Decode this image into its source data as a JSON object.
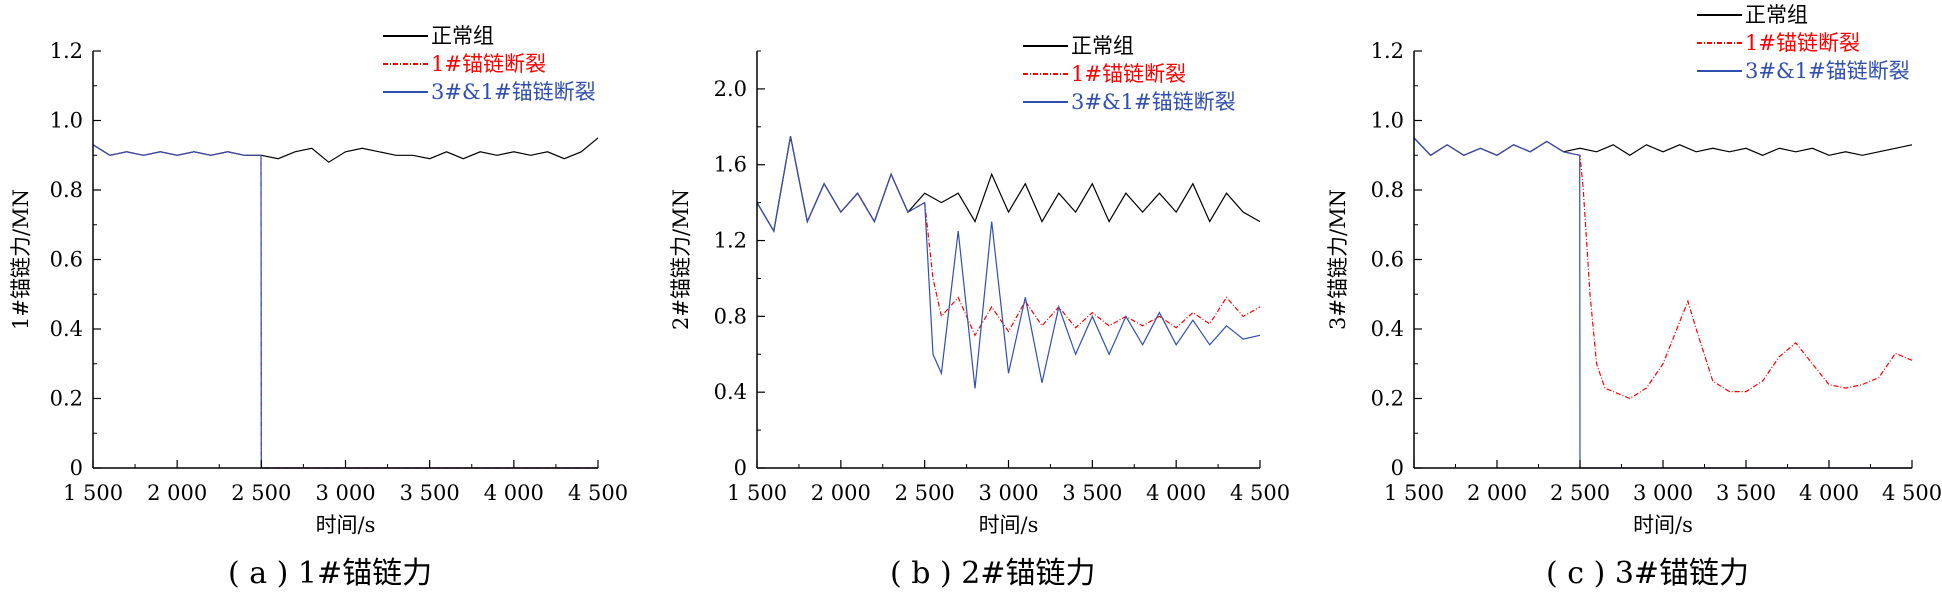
{
  "chart_data": [
    {
      "type": "line",
      "caption": "( a ) 1#锚链力",
      "xlabel": "时间/s",
      "ylabel": "1#锚链力/MN",
      "xlim": [
        1500,
        4500
      ],
      "ylim": [
        0,
        1.2
      ],
      "x_ticks": [
        "1 500",
        "2 000",
        "2 500",
        "3 000",
        "3 500",
        "4 000",
        "4 500"
      ],
      "y_ticks": [
        "0",
        "0.2",
        "0.4",
        "0.6",
        "0.8",
        "1.0",
        "1.2"
      ],
      "legend_position": "top-right",
      "series": [
        {
          "name": "正常组",
          "color": "#000000",
          "style": "solid",
          "points": [
            [
              1500,
              0.93
            ],
            [
              1600,
              0.9
            ],
            [
              1700,
              0.91
            ],
            [
              1800,
              0.9
            ],
            [
              1900,
              0.91
            ],
            [
              2000,
              0.9
            ],
            [
              2100,
              0.91
            ],
            [
              2200,
              0.9
            ],
            [
              2300,
              0.91
            ],
            [
              2400,
              0.9
            ],
            [
              2500,
              0.9
            ],
            [
              2600,
              0.89
            ],
            [
              2700,
              0.91
            ],
            [
              2800,
              0.92
            ],
            [
              2900,
              0.88
            ],
            [
              3000,
              0.91
            ],
            [
              3100,
              0.92
            ],
            [
              3200,
              0.91
            ],
            [
              3300,
              0.9
            ],
            [
              3400,
              0.9
            ],
            [
              3500,
              0.89
            ],
            [
              3600,
              0.91
            ],
            [
              3700,
              0.89
            ],
            [
              3800,
              0.91
            ],
            [
              3900,
              0.9
            ],
            [
              4000,
              0.91
            ],
            [
              4100,
              0.9
            ],
            [
              4200,
              0.91
            ],
            [
              4300,
              0.89
            ],
            [
              4400,
              0.91
            ],
            [
              4500,
              0.95
            ]
          ]
        },
        {
          "name": "1#锚链断裂",
          "color": "#ff0000",
          "style": "dash-dot",
          "points": [
            [
              1500,
              0.93
            ],
            [
              1600,
              0.9
            ],
            [
              1700,
              0.91
            ],
            [
              1800,
              0.9
            ],
            [
              1900,
              0.91
            ],
            [
              2000,
              0.9
            ],
            [
              2100,
              0.91
            ],
            [
              2200,
              0.9
            ],
            [
              2300,
              0.91
            ],
            [
              2400,
              0.9
            ],
            [
              2498,
              0.9
            ],
            [
              2500,
              0.0
            ],
            [
              4500,
              0.0
            ]
          ]
        },
        {
          "name": "3#&1#锚链断裂",
          "color": "#3050b0",
          "style": "solid",
          "points": [
            [
              1500,
              0.93
            ],
            [
              1600,
              0.9
            ],
            [
              1700,
              0.91
            ],
            [
              1800,
              0.9
            ],
            [
              1900,
              0.91
            ],
            [
              2000,
              0.9
            ],
            [
              2100,
              0.91
            ],
            [
              2200,
              0.9
            ],
            [
              2300,
              0.91
            ],
            [
              2400,
              0.9
            ],
            [
              2498,
              0.9
            ],
            [
              2500,
              0.0
            ],
            [
              4500,
              0.0
            ]
          ]
        }
      ]
    },
    {
      "type": "line",
      "caption": "( b ) 2#锚链力",
      "xlabel": "时间/s",
      "ylabel": "2#锚链力/MN",
      "xlim": [
        1500,
        4500
      ],
      "ylim": [
        0,
        2.2
      ],
      "x_ticks": [
        "1 500",
        "2 000",
        "2 500",
        "3 000",
        "3 500",
        "4 000",
        "4 500"
      ],
      "y_ticks": [
        "0",
        "0.4",
        "0.8",
        "1.2",
        "1.6",
        "2.0"
      ],
      "legend_position": "top-right",
      "series": [
        {
          "name": "正常组",
          "color": "#000000",
          "style": "solid",
          "points": [
            [
              1500,
              1.4
            ],
            [
              1600,
              1.25
            ],
            [
              1700,
              1.75
            ],
            [
              1800,
              1.3
            ],
            [
              1900,
              1.5
            ],
            [
              2000,
              1.35
            ],
            [
              2100,
              1.45
            ],
            [
              2200,
              1.3
            ],
            [
              2300,
              1.55
            ],
            [
              2400,
              1.35
            ],
            [
              2500,
              1.45
            ],
            [
              2600,
              1.4
            ],
            [
              2700,
              1.45
            ],
            [
              2800,
              1.3
            ],
            [
              2900,
              1.55
            ],
            [
              3000,
              1.35
            ],
            [
              3100,
              1.5
            ],
            [
              3200,
              1.3
            ],
            [
              3300,
              1.45
            ],
            [
              3400,
              1.35
            ],
            [
              3500,
              1.5
            ],
            [
              3600,
              1.3
            ],
            [
              3700,
              1.45
            ],
            [
              3800,
              1.35
            ],
            [
              3900,
              1.45
            ],
            [
              4000,
              1.35
            ],
            [
              4100,
              1.5
            ],
            [
              4200,
              1.3
            ],
            [
              4300,
              1.45
            ],
            [
              4400,
              1.35
            ],
            [
              4500,
              1.3
            ]
          ]
        },
        {
          "name": "1#锚链断裂",
          "color": "#ff0000",
          "style": "dash-dot",
          "points": [
            [
              1500,
              1.4
            ],
            [
              1600,
              1.25
            ],
            [
              1700,
              1.75
            ],
            [
              1800,
              1.3
            ],
            [
              1900,
              1.5
            ],
            [
              2000,
              1.35
            ],
            [
              2100,
              1.45
            ],
            [
              2200,
              1.3
            ],
            [
              2300,
              1.55
            ],
            [
              2400,
              1.35
            ],
            [
              2500,
              1.4
            ],
            [
              2550,
              1.0
            ],
            [
              2600,
              0.8
            ],
            [
              2700,
              0.9
            ],
            [
              2800,
              0.7
            ],
            [
              2900,
              0.85
            ],
            [
              3000,
              0.72
            ],
            [
              3100,
              0.88
            ],
            [
              3200,
              0.75
            ],
            [
              3300,
              0.85
            ],
            [
              3400,
              0.74
            ],
            [
              3500,
              0.82
            ],
            [
              3600,
              0.75
            ],
            [
              3700,
              0.8
            ],
            [
              3800,
              0.75
            ],
            [
              3900,
              0.8
            ],
            [
              4000,
              0.74
            ],
            [
              4100,
              0.82
            ],
            [
              4200,
              0.76
            ],
            [
              4300,
              0.9
            ],
            [
              4400,
              0.8
            ],
            [
              4500,
              0.85
            ]
          ]
        },
        {
          "name": "3#&1#锚链断裂",
          "color": "#3050b0",
          "style": "solid",
          "points": [
            [
              1500,
              1.4
            ],
            [
              1600,
              1.25
            ],
            [
              1700,
              1.75
            ],
            [
              1800,
              1.3
            ],
            [
              1900,
              1.5
            ],
            [
              2000,
              1.35
            ],
            [
              2100,
              1.45
            ],
            [
              2200,
              1.3
            ],
            [
              2300,
              1.55
            ],
            [
              2400,
              1.35
            ],
            [
              2500,
              1.4
            ],
            [
              2550,
              0.6
            ],
            [
              2600,
              0.5
            ],
            [
              2700,
              1.25
            ],
            [
              2800,
              0.42
            ],
            [
              2900,
              1.3
            ],
            [
              3000,
              0.5
            ],
            [
              3100,
              0.9
            ],
            [
              3200,
              0.45
            ],
            [
              3300,
              0.85
            ],
            [
              3400,
              0.6
            ],
            [
              3500,
              0.8
            ],
            [
              3600,
              0.6
            ],
            [
              3700,
              0.8
            ],
            [
              3800,
              0.65
            ],
            [
              3900,
              0.82
            ],
            [
              4000,
              0.65
            ],
            [
              4100,
              0.78
            ],
            [
              4200,
              0.65
            ],
            [
              4300,
              0.75
            ],
            [
              4400,
              0.68
            ],
            [
              4500,
              0.7
            ]
          ]
        }
      ]
    },
    {
      "type": "line",
      "caption": "( c ) 3#锚链力",
      "xlabel": "时间/s",
      "ylabel": "3#锚链力/MN",
      "xlim": [
        1500,
        4500
      ],
      "ylim": [
        0,
        1.2
      ],
      "x_ticks": [
        "1 500",
        "2 000",
        "2 500",
        "3 000",
        "3 500",
        "4 000",
        "4 500"
      ],
      "y_ticks": [
        "0",
        "0.2",
        "0.4",
        "0.6",
        "0.8",
        "1.0",
        "1.2"
      ],
      "legend_position": "top-right",
      "series": [
        {
          "name": "正常组",
          "color": "#000000",
          "style": "solid",
          "points": [
            [
              1500,
              0.95
            ],
            [
              1600,
              0.9
            ],
            [
              1700,
              0.93
            ],
            [
              1800,
              0.9
            ],
            [
              1900,
              0.92
            ],
            [
              2000,
              0.9
            ],
            [
              2100,
              0.93
            ],
            [
              2200,
              0.91
            ],
            [
              2300,
              0.94
            ],
            [
              2400,
              0.91
            ],
            [
              2500,
              0.92
            ],
            [
              2600,
              0.91
            ],
            [
              2700,
              0.93
            ],
            [
              2800,
              0.9
            ],
            [
              2900,
              0.93
            ],
            [
              3000,
              0.91
            ],
            [
              3100,
              0.93
            ],
            [
              3200,
              0.91
            ],
            [
              3300,
              0.92
            ],
            [
              3400,
              0.91
            ],
            [
              3500,
              0.92
            ],
            [
              3600,
              0.9
            ],
            [
              3700,
              0.92
            ],
            [
              3800,
              0.91
            ],
            [
              3900,
              0.92
            ],
            [
              4000,
              0.9
            ],
            [
              4100,
              0.91
            ],
            [
              4200,
              0.9
            ],
            [
              4300,
              0.91
            ],
            [
              4400,
              0.92
            ],
            [
              4500,
              0.93
            ]
          ]
        },
        {
          "name": "1#锚链断裂",
          "color": "#ff0000",
          "style": "dash-dot",
          "points": [
            [
              1500,
              0.95
            ],
            [
              1600,
              0.9
            ],
            [
              1700,
              0.93
            ],
            [
              1800,
              0.9
            ],
            [
              1900,
              0.92
            ],
            [
              2000,
              0.9
            ],
            [
              2100,
              0.93
            ],
            [
              2200,
              0.91
            ],
            [
              2300,
              0.94
            ],
            [
              2400,
              0.91
            ],
            [
              2500,
              0.9
            ],
            [
              2520,
              0.8
            ],
            [
              2560,
              0.5
            ],
            [
              2600,
              0.3
            ],
            [
              2650,
              0.23
            ],
            [
              2700,
              0.22
            ],
            [
              2800,
              0.2
            ],
            [
              2900,
              0.23
            ],
            [
              3000,
              0.3
            ],
            [
              3100,
              0.42
            ],
            [
              3150,
              0.48
            ],
            [
              3200,
              0.4
            ],
            [
              3300,
              0.25
            ],
            [
              3400,
              0.22
            ],
            [
              3500,
              0.22
            ],
            [
              3600,
              0.25
            ],
            [
              3700,
              0.32
            ],
            [
              3800,
              0.36
            ],
            [
              3900,
              0.3
            ],
            [
              4000,
              0.24
            ],
            [
              4100,
              0.23
            ],
            [
              4200,
              0.24
            ],
            [
              4300,
              0.26
            ],
            [
              4400,
              0.33
            ],
            [
              4500,
              0.31
            ]
          ]
        },
        {
          "name": "3#&1#锚链断裂",
          "color": "#3050b0",
          "style": "solid",
          "points": [
            [
              1500,
              0.95
            ],
            [
              1600,
              0.9
            ],
            [
              1700,
              0.93
            ],
            [
              1800,
              0.9
            ],
            [
              1900,
              0.92
            ],
            [
              2000,
              0.9
            ],
            [
              2100,
              0.93
            ],
            [
              2200,
              0.91
            ],
            [
              2300,
              0.94
            ],
            [
              2400,
              0.91
            ],
            [
              2498,
              0.9
            ],
            [
              2500,
              0.0
            ],
            [
              4500,
              0.0
            ]
          ]
        }
      ]
    }
  ]
}
